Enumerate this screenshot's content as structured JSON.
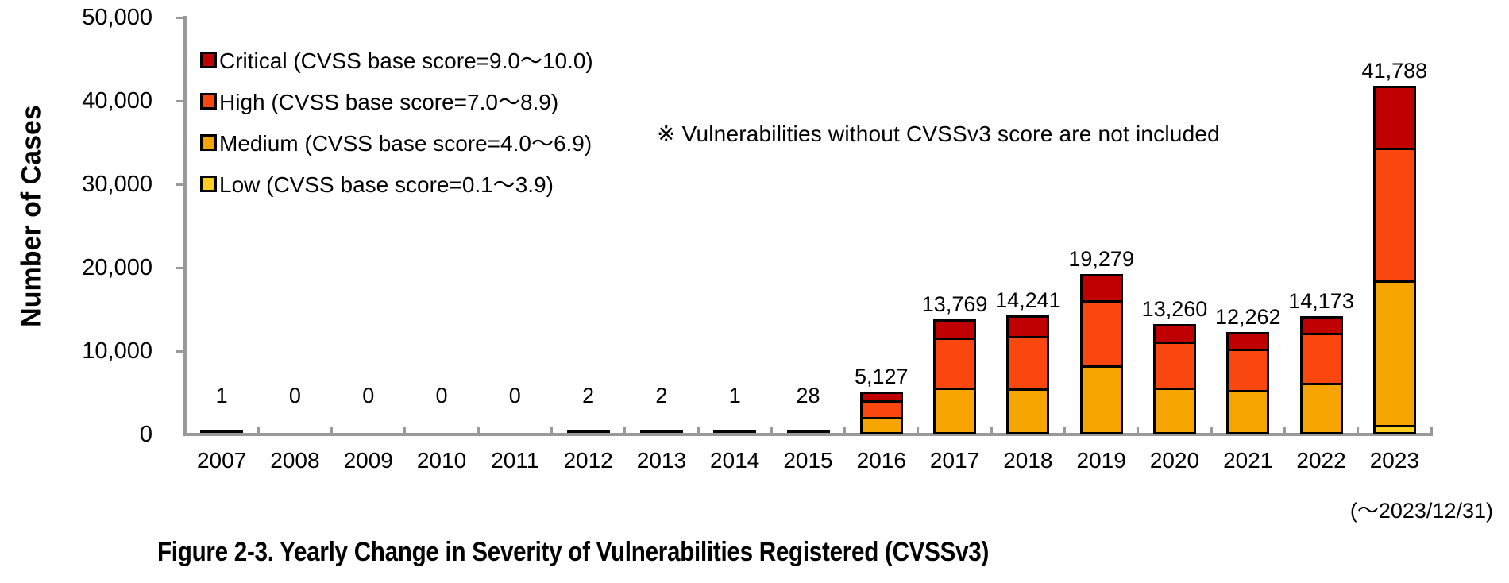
{
  "chart_data": {
    "type": "bar",
    "stacked": true,
    "title": "Figure 2-3. Yearly Change in Severity of Vulnerabilities Registered (CVSSv3)",
    "ylabel": "Number of Cases",
    "xlabel": "",
    "ylim": [
      0,
      50000
    ],
    "ytick_interval": 10000,
    "ytick_labels": [
      "0",
      "10,000",
      "20,000",
      "30,000",
      "40,000",
      "50,000"
    ],
    "grid": false,
    "legend_position": "inside-top-left",
    "note": "※ Vulnerabilities without CVSSv3 score are not included",
    "period_note": "(〜2023/12/31)",
    "axis_color": "#999999",
    "bar_border_color": "#000000",
    "categories": [
      "2007",
      "2008",
      "2009",
      "2010",
      "2011",
      "2012",
      "2013",
      "2014",
      "2015",
      "2016",
      "2017",
      "2018",
      "2019",
      "2020",
      "2021",
      "2022",
      "2023"
    ],
    "totals": [
      1,
      0,
      0,
      0,
      0,
      2,
      2,
      1,
      28,
      5127,
      13769,
      14241,
      19279,
      13260,
      12262,
      14173,
      41788
    ],
    "total_labels": [
      "1",
      "0",
      "0",
      "0",
      "0",
      "2",
      "2",
      "1",
      "28",
      "5,127",
      "13,769",
      "14,241",
      "19,279",
      "13,260",
      "12,262",
      "14,173",
      "41,788"
    ],
    "series": [
      {
        "name": "Low",
        "color": "#FFCE1F",
        "values": [
          0,
          0,
          0,
          0,
          0,
          0,
          0,
          0,
          0,
          0,
          0,
          0,
          0,
          0,
          0,
          0,
          570
        ]
      },
      {
        "name": "Medium",
        "color": "#F6A500",
        "values": [
          1,
          0,
          0,
          0,
          0,
          2,
          2,
          1,
          28,
          1977,
          5569,
          5381,
          8129,
          5560,
          5292,
          6123,
          17688
        ]
      },
      {
        "name": "High",
        "color": "#FA460F",
        "values": [
          0,
          0,
          0,
          0,
          0,
          0,
          0,
          0,
          0,
          2200,
          6200,
          6570,
          8100,
          5650,
          5150,
          6200,
          16200
        ]
      },
      {
        "name": "Critical",
        "color": "#C00000",
        "values": [
          0,
          0,
          0,
          0,
          0,
          0,
          0,
          0,
          0,
          950,
          2000,
          2290,
          3050,
          2050,
          1820,
          1850,
          7330
        ]
      }
    ],
    "legend": [
      {
        "name": "Critical",
        "label": "Critical (CVSS base score=9.0〜10.0)",
        "color": "#C00000"
      },
      {
        "name": "High",
        "label": "High (CVSS base score=7.0〜8.9)",
        "color": "#FA460F"
      },
      {
        "name": "Medium",
        "label": "Medium (CVSS base score=4.0〜6.9)",
        "color": "#F6A500"
      },
      {
        "name": "Low",
        "label": "Low (CVSS base score=0.1〜3.9)",
        "color": "#FFCE1F"
      }
    ]
  }
}
